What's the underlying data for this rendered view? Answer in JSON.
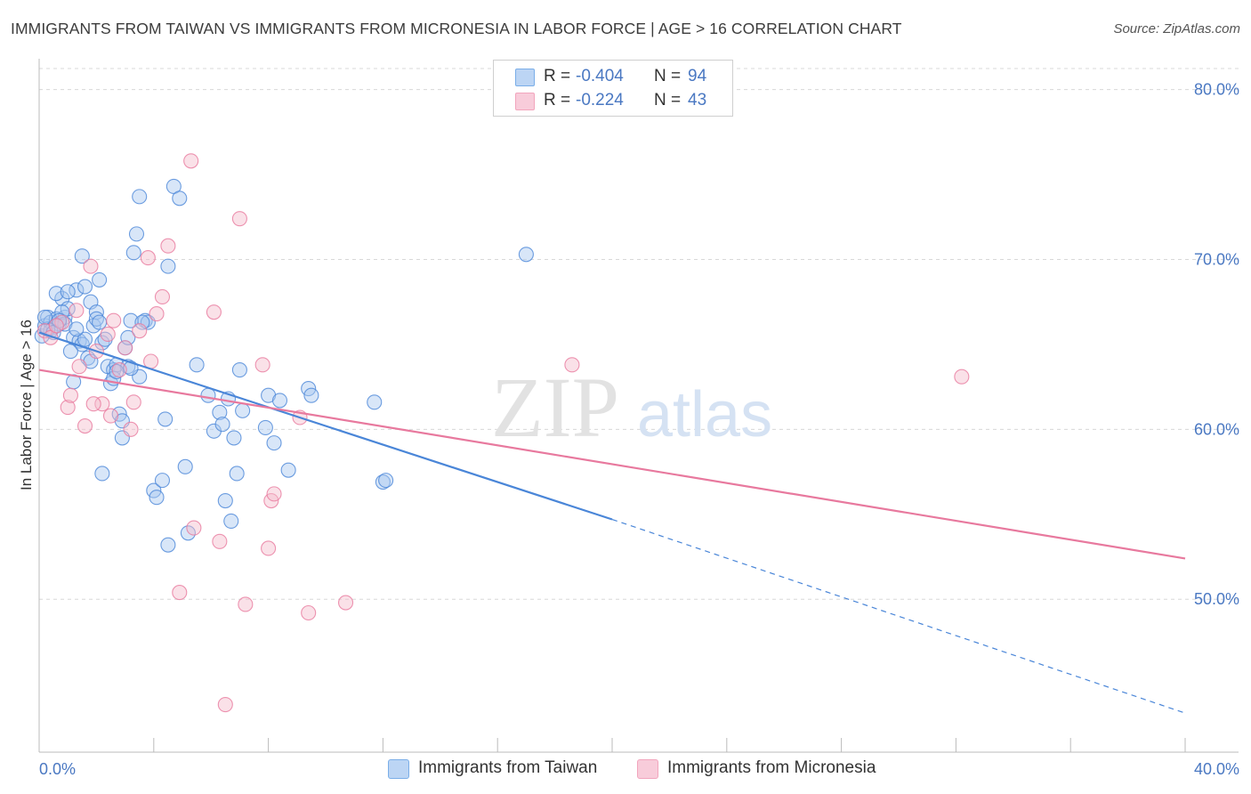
{
  "title": "IMMIGRANTS FROM TAIWAN VS IMMIGRANTS FROM MICRONESIA IN LABOR FORCE | AGE > 16 CORRELATION CHART",
  "source": "Source: ZipAtlas.com",
  "watermark": {
    "zip": "ZIP",
    "atlas": "atlas"
  },
  "legend": [
    {
      "r_label": "R =",
      "r_value": "-0.404",
      "n_label": "N =",
      "n_value": "94",
      "color": "#7aaee8"
    },
    {
      "r_label": "R =",
      "r_value": "-0.224",
      "n_label": "N =",
      "n_value": "43",
      "color": "#f2a5bd"
    }
  ],
  "bottom_legend": [
    {
      "label": "Immigrants from Taiwan",
      "color": "#7aaee8"
    },
    {
      "label": "Immigrants from Micronesia",
      "color": "#f2a5bd"
    }
  ],
  "chart_data": {
    "type": "scatter",
    "ylabel": "In Labor Force | Age > 16",
    "xlabel": "",
    "xlim": [
      0,
      40
    ],
    "ylim": [
      41,
      81.5
    ],
    "x_tick_labels": [
      "0.0%",
      "40.0%"
    ],
    "y_ticks": [
      50,
      60,
      70,
      80
    ],
    "y_tick_labels": [
      "50.0%",
      "60.0%",
      "70.0%",
      "80.0%"
    ],
    "grid": "horizontal dashed",
    "series": [
      {
        "name": "Immigrants from Taiwan",
        "color": "#4a86d8",
        "fill": "#a9c8f0",
        "points": [
          [
            0.1,
            65.5
          ],
          [
            0.2,
            66.1
          ],
          [
            0.3,
            66.6
          ],
          [
            0.4,
            66.3
          ],
          [
            0.5,
            66.0
          ],
          [
            0.6,
            66.5
          ],
          [
            0.7,
            66.2
          ],
          [
            0.8,
            67.7
          ],
          [
            0.6,
            68.0
          ],
          [
            0.9,
            66.6
          ],
          [
            1.0,
            67.1
          ],
          [
            1.1,
            64.6
          ],
          [
            1.2,
            65.4
          ],
          [
            1.3,
            68.2
          ],
          [
            1.4,
            65.2
          ],
          [
            1.5,
            70.2
          ],
          [
            1.6,
            68.4
          ],
          [
            1.7,
            64.2
          ],
          [
            1.8,
            67.5
          ],
          [
            1.9,
            66.1
          ],
          [
            2.0,
            66.9
          ],
          [
            2.1,
            68.8
          ],
          [
            2.2,
            65.1
          ],
          [
            2.3,
            65.3
          ],
          [
            2.4,
            63.7
          ],
          [
            2.5,
            62.7
          ],
          [
            2.6,
            63.5
          ],
          [
            2.7,
            63.8
          ],
          [
            2.8,
            60.9
          ],
          [
            2.9,
            60.5
          ],
          [
            3.0,
            64.8
          ],
          [
            3.1,
            63.7
          ],
          [
            3.2,
            66.4
          ],
          [
            3.3,
            70.4
          ],
          [
            3.4,
            71.5
          ],
          [
            3.5,
            63.1
          ],
          [
            3.5,
            73.7
          ],
          [
            3.7,
            66.4
          ],
          [
            3.8,
            66.3
          ],
          [
            4.0,
            56.4
          ],
          [
            4.1,
            56.0
          ],
          [
            4.3,
            57.0
          ],
          [
            4.4,
            60.6
          ],
          [
            4.5,
            53.2
          ],
          [
            4.5,
            69.6
          ],
          [
            4.7,
            74.3
          ],
          [
            4.9,
            73.6
          ],
          [
            5.1,
            57.8
          ],
          [
            5.2,
            53.9
          ],
          [
            5.5,
            63.8
          ],
          [
            5.9,
            62.0
          ],
          [
            6.1,
            59.9
          ],
          [
            6.3,
            61.0
          ],
          [
            6.4,
            60.3
          ],
          [
            6.5,
            55.8
          ],
          [
            6.6,
            61.8
          ],
          [
            6.7,
            54.6
          ],
          [
            6.8,
            59.5
          ],
          [
            6.9,
            57.4
          ],
          [
            7.0,
            63.5
          ],
          [
            7.1,
            61.1
          ],
          [
            7.9,
            60.1
          ],
          [
            8.0,
            62.0
          ],
          [
            8.2,
            59.2
          ],
          [
            8.4,
            61.7
          ],
          [
            8.7,
            57.6
          ],
          [
            9.4,
            62.4
          ],
          [
            9.5,
            62.0
          ],
          [
            11.7,
            61.6
          ],
          [
            12.0,
            56.9
          ],
          [
            12.1,
            57.0
          ],
          [
            17.0,
            70.3
          ],
          [
            0.4,
            65.8
          ],
          [
            0.8,
            66.9
          ],
          [
            1.2,
            62.8
          ],
          [
            1.5,
            65.0
          ],
          [
            2.0,
            66.5
          ],
          [
            2.6,
            63.0
          ],
          [
            3.2,
            63.6
          ],
          [
            0.3,
            65.9
          ],
          [
            0.9,
            66.2
          ],
          [
            1.8,
            64.0
          ],
          [
            2.9,
            59.5
          ],
          [
            3.6,
            66.3
          ],
          [
            2.2,
            57.4
          ],
          [
            1.0,
            68.1
          ],
          [
            0.5,
            65.7
          ],
          [
            1.6,
            65.3
          ],
          [
            2.7,
            63.4
          ],
          [
            3.1,
            65.4
          ],
          [
            0.7,
            66.4
          ],
          [
            1.3,
            65.9
          ],
          [
            2.1,
            66.3
          ],
          [
            0.2,
            66.6
          ]
        ],
        "trend": {
          "x": [
            0,
            20
          ],
          "y": [
            65.7,
            54.7
          ],
          "dashed_to": [
            40,
            43.3
          ]
        }
      },
      {
        "name": "Immigrants from Micronesia",
        "color": "#e8799e",
        "fill": "#f5bccd",
        "points": [
          [
            0.2,
            65.8
          ],
          [
            0.4,
            65.4
          ],
          [
            0.8,
            66.3
          ],
          [
            1.0,
            61.3
          ],
          [
            1.1,
            62.0
          ],
          [
            1.3,
            67.0
          ],
          [
            1.4,
            63.7
          ],
          [
            1.6,
            60.2
          ],
          [
            1.8,
            69.6
          ],
          [
            2.0,
            64.6
          ],
          [
            2.2,
            61.5
          ],
          [
            2.4,
            65.6
          ],
          [
            2.5,
            60.8
          ],
          [
            2.6,
            66.4
          ],
          [
            2.8,
            63.5
          ],
          [
            3.0,
            64.8
          ],
          [
            3.2,
            60.0
          ],
          [
            3.3,
            61.6
          ],
          [
            3.8,
            70.1
          ],
          [
            3.9,
            64.0
          ],
          [
            4.1,
            66.8
          ],
          [
            4.3,
            67.8
          ],
          [
            4.5,
            70.8
          ],
          [
            4.9,
            50.4
          ],
          [
            5.3,
            75.8
          ],
          [
            5.4,
            54.2
          ],
          [
            6.1,
            66.9
          ],
          [
            6.3,
            53.4
          ],
          [
            6.5,
            43.8
          ],
          [
            7.0,
            72.4
          ],
          [
            7.2,
            49.7
          ],
          [
            7.8,
            63.8
          ],
          [
            8.0,
            53.0
          ],
          [
            8.1,
            55.8
          ],
          [
            8.2,
            56.2
          ],
          [
            9.1,
            60.7
          ],
          [
            9.4,
            49.2
          ],
          [
            10.7,
            49.8
          ],
          [
            18.6,
            63.8
          ],
          [
            32.2,
            63.1
          ],
          [
            0.6,
            66.1
          ],
          [
            1.9,
            61.5
          ],
          [
            3.5,
            65.8
          ]
        ],
        "trend": {
          "x": [
            0,
            40
          ],
          "y": [
            63.5,
            52.4
          ]
        }
      }
    ]
  }
}
